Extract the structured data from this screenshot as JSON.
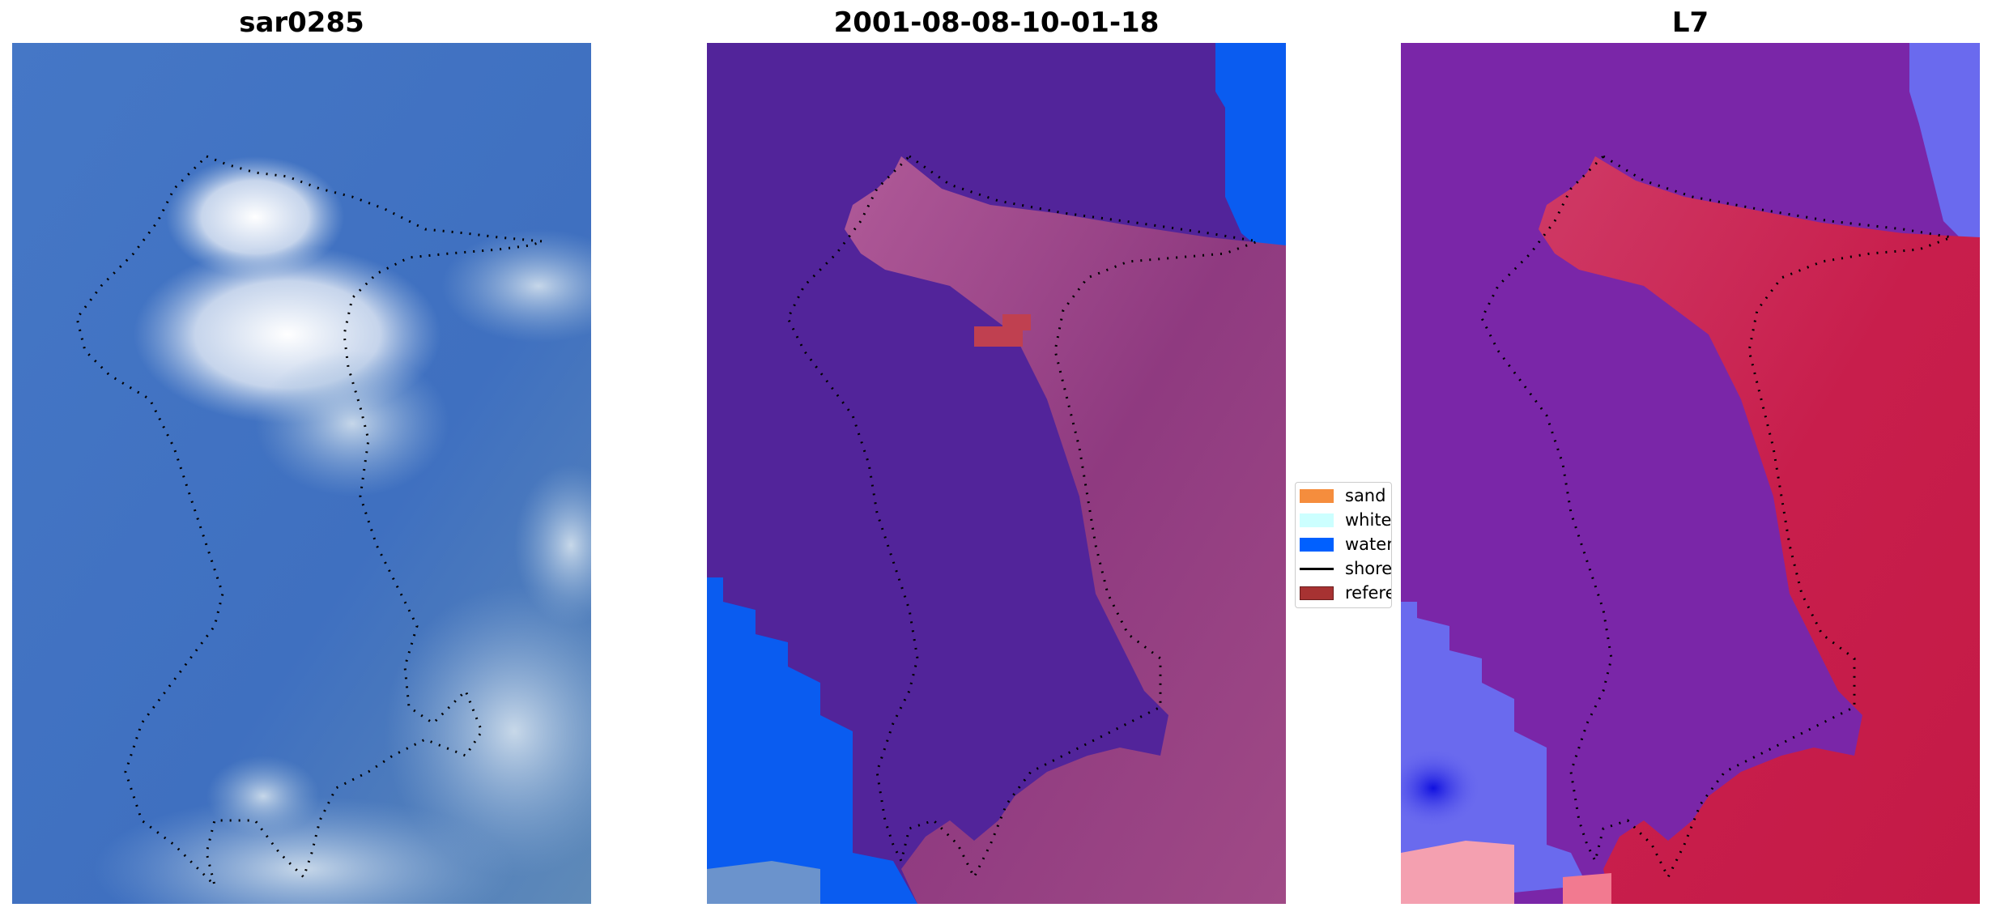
{
  "panels": [
    {
      "title": "sar0285"
    },
    {
      "title": "2001-08-08-10-01-18"
    },
    {
      "title": "L7"
    }
  ],
  "legend": {
    "items": [
      {
        "label": "sand",
        "color": "#f58d3d"
      },
      {
        "label": "whitewater",
        "color": "#ccffff"
      },
      {
        "label": "water",
        "color": "#0060ff"
      },
      {
        "label": "shoreline",
        "color": "#000000"
      },
      {
        "label": "reference",
        "color": "#a73232"
      }
    ]
  },
  "colors": {
    "ocean_rgb": "#3f73c3",
    "cloud_white": "#f2f4f8",
    "class_background": "#52249a",
    "class_land": "#9a4088",
    "ndwi_land": "#c2184a",
    "ndwi_water": "#7a26a8"
  }
}
